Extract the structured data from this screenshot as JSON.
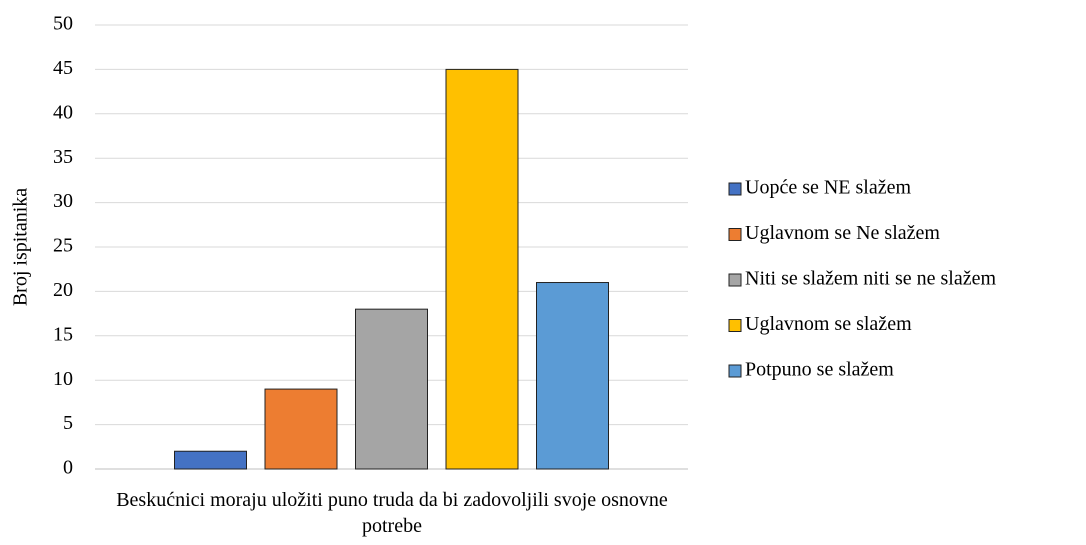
{
  "chart_data": {
    "type": "bar",
    "categories": [
      "Beskućnici moraju uložiti puno truda da bi zadovoljili svoje osnovne potrebe"
    ],
    "series": [
      {
        "name": "Uopće se NE slažem",
        "color": "#4472c4",
        "values": [
          2
        ]
      },
      {
        "name": "Uglavnom se Ne slažem",
        "color": "#ed7d31",
        "values": [
          9
        ]
      },
      {
        "name": "Niti se slažem niti se ne slažem",
        "color": "#a5a5a5",
        "values": [
          18
        ]
      },
      {
        "name": "Uglavnom se slažem",
        "color": "#ffc000",
        "values": [
          45
        ]
      },
      {
        "name": "Potpuno se slažem",
        "color": "#5b9bd5",
        "values": [
          21
        ]
      }
    ],
    "y_label": "Broj ispitanika",
    "ylim": [
      0,
      50
    ],
    "yticks": [
      0,
      5,
      10,
      15,
      20,
      25,
      30,
      35,
      40,
      45,
      50
    ],
    "grid": true,
    "legend": "right"
  }
}
